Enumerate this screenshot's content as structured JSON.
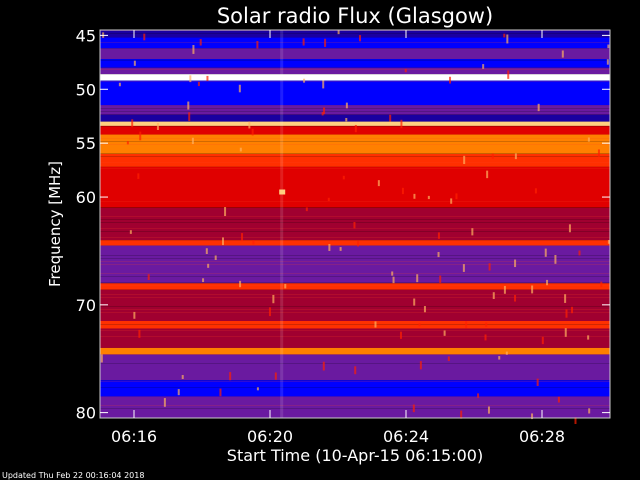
{
  "chart_data": {
    "type": "heatmap",
    "title": "Solar radio Flux (Glasgow)",
    "xlabel": "Start Time (10-Apr-15 06:15:00)",
    "ylabel": "Frequency [MHz]",
    "footer": "Updated Thu Feb 22 00:16:04 2018",
    "x_range_minutes": [
      0,
      15
    ],
    "x_ticks": [
      {
        "minute": 1,
        "label": "06:16"
      },
      {
        "minute": 5,
        "label": "06:20"
      },
      {
        "minute": 9,
        "label": "06:24"
      },
      {
        "minute": 13,
        "label": "06:28"
      }
    ],
    "y_range_mhz": [
      44.5,
      80.5
    ],
    "y_ticks": [
      {
        "mhz": 45,
        "label": "45"
      },
      {
        "mhz": 50,
        "label": "50"
      },
      {
        "mhz": 55,
        "label": "55"
      },
      {
        "mhz": 60,
        "label": "60"
      },
      {
        "mhz": 70,
        "label": "70"
      },
      {
        "mhz": 80,
        "label": "80"
      }
    ],
    "colormap": [
      "#000000",
      "#1a00a0",
      "#0000ff",
      "#6a1aa0",
      "#a00030",
      "#e00000",
      "#ff3000",
      "#ff8000",
      "#ffd080",
      "#ffffff"
    ],
    "bands": [
      {
        "f0": 44.5,
        "f1": 45.2,
        "level": 1
      },
      {
        "f0": 45.2,
        "f1": 46.2,
        "level": 2
      },
      {
        "f0": 46.2,
        "f1": 47.2,
        "level": 3
      },
      {
        "f0": 47.2,
        "f1": 48.0,
        "level": 2
      },
      {
        "f0": 48.0,
        "f1": 48.6,
        "level": 3
      },
      {
        "f0": 48.6,
        "f1": 49.2,
        "level": 9
      },
      {
        "f0": 49.2,
        "f1": 51.5,
        "level": 2
      },
      {
        "f0": 51.5,
        "f1": 52.3,
        "level": 3
      },
      {
        "f0": 52.3,
        "f1": 53.0,
        "level": 1
      },
      {
        "f0": 53.0,
        "f1": 53.4,
        "level": 8
      },
      {
        "f0": 53.4,
        "f1": 54.2,
        "level": 5
      },
      {
        "f0": 54.2,
        "f1": 56.0,
        "level": 7
      },
      {
        "f0": 56.0,
        "f1": 57.2,
        "level": 6
      },
      {
        "f0": 57.2,
        "f1": 61.0,
        "level": 5
      },
      {
        "f0": 61.0,
        "f1": 64.0,
        "level": 4
      },
      {
        "f0": 64.0,
        "f1": 64.5,
        "level": 6
      },
      {
        "f0": 64.5,
        "f1": 68.0,
        "level": 3
      },
      {
        "f0": 68.0,
        "f1": 68.6,
        "level": 6
      },
      {
        "f0": 68.6,
        "f1": 71.5,
        "level": 4
      },
      {
        "f0": 71.5,
        "f1": 72.2,
        "level": 6
      },
      {
        "f0": 72.2,
        "f1": 74.0,
        "level": 4
      },
      {
        "f0": 74.0,
        "f1": 74.6,
        "level": 7
      },
      {
        "f0": 74.6,
        "f1": 77.0,
        "level": 3
      },
      {
        "f0": 77.0,
        "f1": 78.5,
        "level": 2
      },
      {
        "f0": 78.5,
        "f1": 80.5,
        "level": 3
      }
    ]
  }
}
